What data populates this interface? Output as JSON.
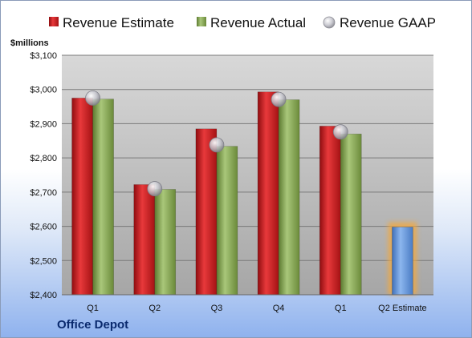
{
  "company": "Office Depot",
  "chart_data": {
    "type": "bar",
    "ylabel": "$millions",
    "categories": [
      "Q1",
      "Q2",
      "Q3",
      "Q4",
      "Q1",
      "Q2 Estimate"
    ],
    "ylim": [
      2400,
      3100
    ],
    "yticks": [
      2400,
      2500,
      2600,
      2700,
      2800,
      2900,
      3000,
      3100
    ],
    "ytick_labels": [
      "$2,400",
      "$2,500",
      "$2,600",
      "$2,700",
      "$2,800",
      "$2,900",
      "$3,000",
      "$3,100"
    ],
    "grid": true,
    "legend_position": "top",
    "series": [
      {
        "name": "Revenue Estimate",
        "type": "bar",
        "color": "#c8171a",
        "values": [
          2975,
          2722,
          2885,
          2993,
          2893,
          null
        ]
      },
      {
        "name": "Revenue Actual",
        "type": "bar",
        "color": "#7fa14a",
        "values": [
          2972,
          2708,
          2834,
          2970,
          2870,
          null
        ]
      },
      {
        "name": "Revenue GAAP",
        "type": "scatter",
        "color": "#b8b8c0",
        "values": [
          2975,
          2710,
          2838,
          2971,
          2876,
          null
        ]
      }
    ],
    "estimate_bar": {
      "category": "Q2 Estimate",
      "value": 2598,
      "color": "#5b8fd6",
      "glow": "#f5a83a"
    }
  }
}
